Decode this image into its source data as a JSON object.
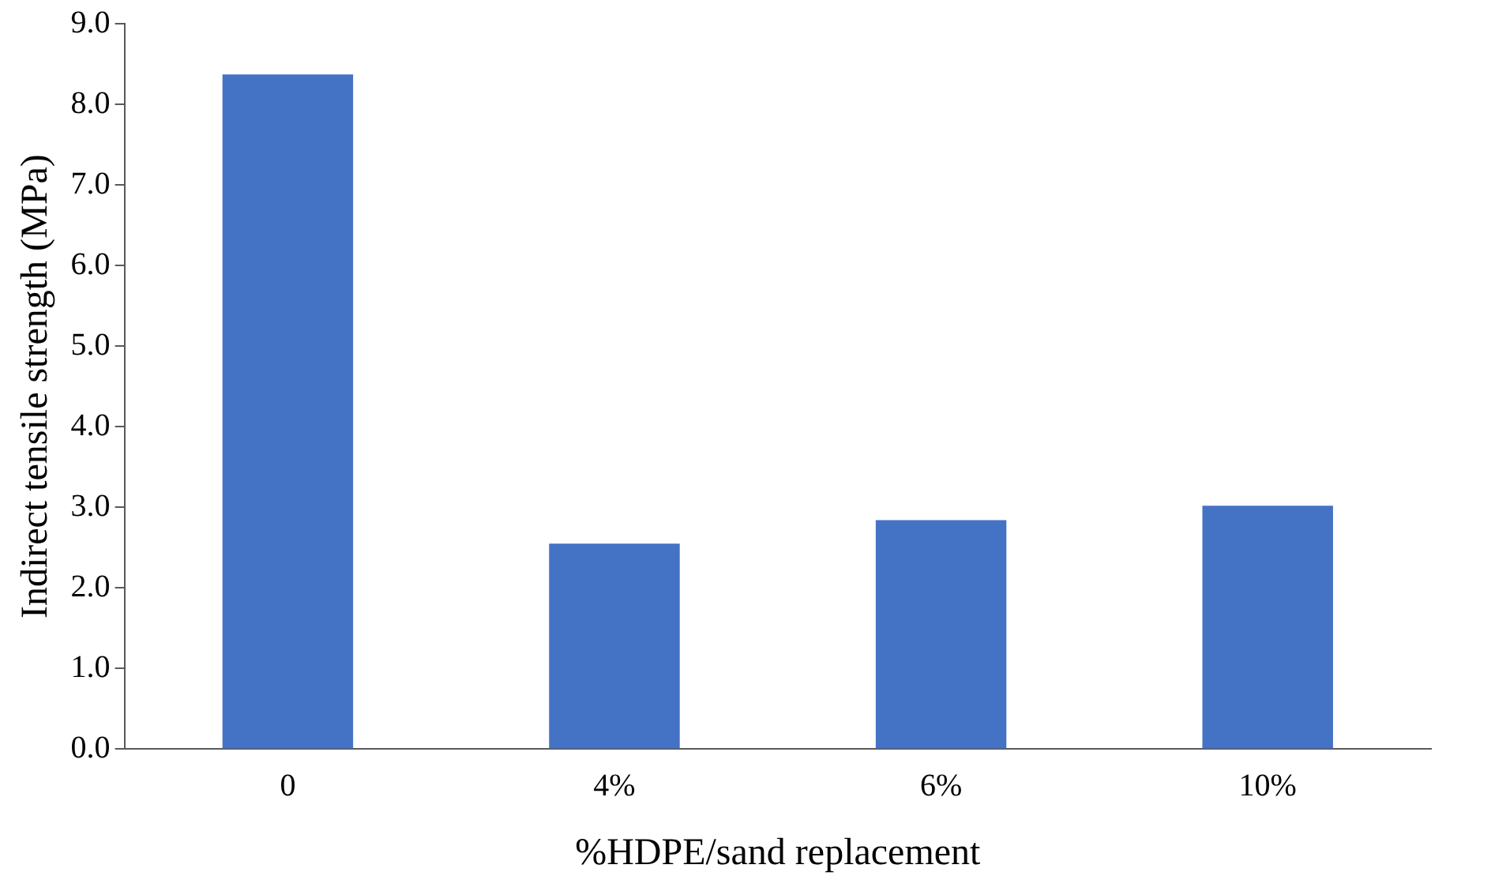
{
  "chart_data": {
    "type": "bar",
    "xlabel": "%HDPE/sand replacement",
    "ylabel": "Indirect tensile strength (MPa)",
    "categories": [
      "0",
      "4%",
      "6%",
      "10%"
    ],
    "values": [
      8.37,
      2.55,
      2.84,
      3.02
    ],
    "color": "#4472c4",
    "ylim": [
      0,
      9
    ],
    "yticks": [
      {
        "value": 0,
        "label": "0.0"
      },
      {
        "value": 1,
        "label": "1.0"
      },
      {
        "value": 2,
        "label": "2.0"
      },
      {
        "value": 3,
        "label": "3.0"
      },
      {
        "value": 4,
        "label": "4.0"
      },
      {
        "value": 5,
        "label": "5.0"
      },
      {
        "value": 6,
        "label": "6.0"
      },
      {
        "value": 7,
        "label": "7.0"
      },
      {
        "value": 8,
        "label": "8.0"
      },
      {
        "value": 9,
        "label": "9.0"
      }
    ],
    "grid": false,
    "legend": false
  }
}
